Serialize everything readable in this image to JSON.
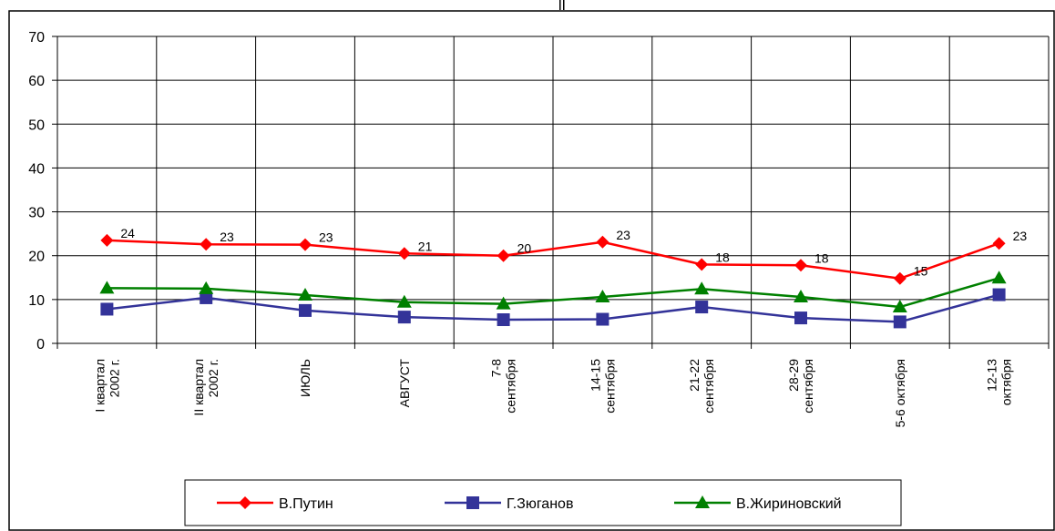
{
  "chart_data": {
    "type": "line",
    "title": "",
    "xlabel": "",
    "ylabel": "",
    "ylim": [
      0,
      70
    ],
    "yticks": [
      "0",
      "10",
      "20",
      "30",
      "40",
      "50",
      "60",
      "70"
    ],
    "grid": true,
    "legend_position": "bottom",
    "categories": [
      [
        "I квартал",
        "2002 г."
      ],
      [
        "II квартал",
        "2002 г."
      ],
      [
        "ИЮЛЬ"
      ],
      [
        "АВГУСТ"
      ],
      [
        "7-8",
        "сентября"
      ],
      [
        "14-15",
        "сентября"
      ],
      [
        "21-22",
        "сентября"
      ],
      [
        "28-29",
        "сентября"
      ],
      [
        "5-6 октября"
      ],
      [
        "12-13",
        "октября"
      ]
    ],
    "series": [
      {
        "name": "В.Путин",
        "color": "#ff0000",
        "marker": "diamond",
        "values": [
          23.5,
          22.6,
          22.5,
          20.5,
          20.0,
          23.1,
          18.0,
          17.8,
          14.8,
          22.8
        ],
        "labels": [
          "24",
          "23",
          "23",
          "21",
          "20",
          "23",
          "18",
          "18",
          "15",
          "23"
        ]
      },
      {
        "name": "Г.Зюганов",
        "color": "#333399",
        "marker": "square",
        "values": [
          7.8,
          10.4,
          7.5,
          6.0,
          5.4,
          5.5,
          8.3,
          5.8,
          4.9,
          11.1
        ]
      },
      {
        "name": "В.Жириновский",
        "color": "#008000",
        "marker": "triangle",
        "values": [
          12.6,
          12.5,
          11.0,
          9.4,
          9.0,
          10.6,
          12.4,
          10.6,
          8.3,
          14.9
        ]
      }
    ]
  }
}
